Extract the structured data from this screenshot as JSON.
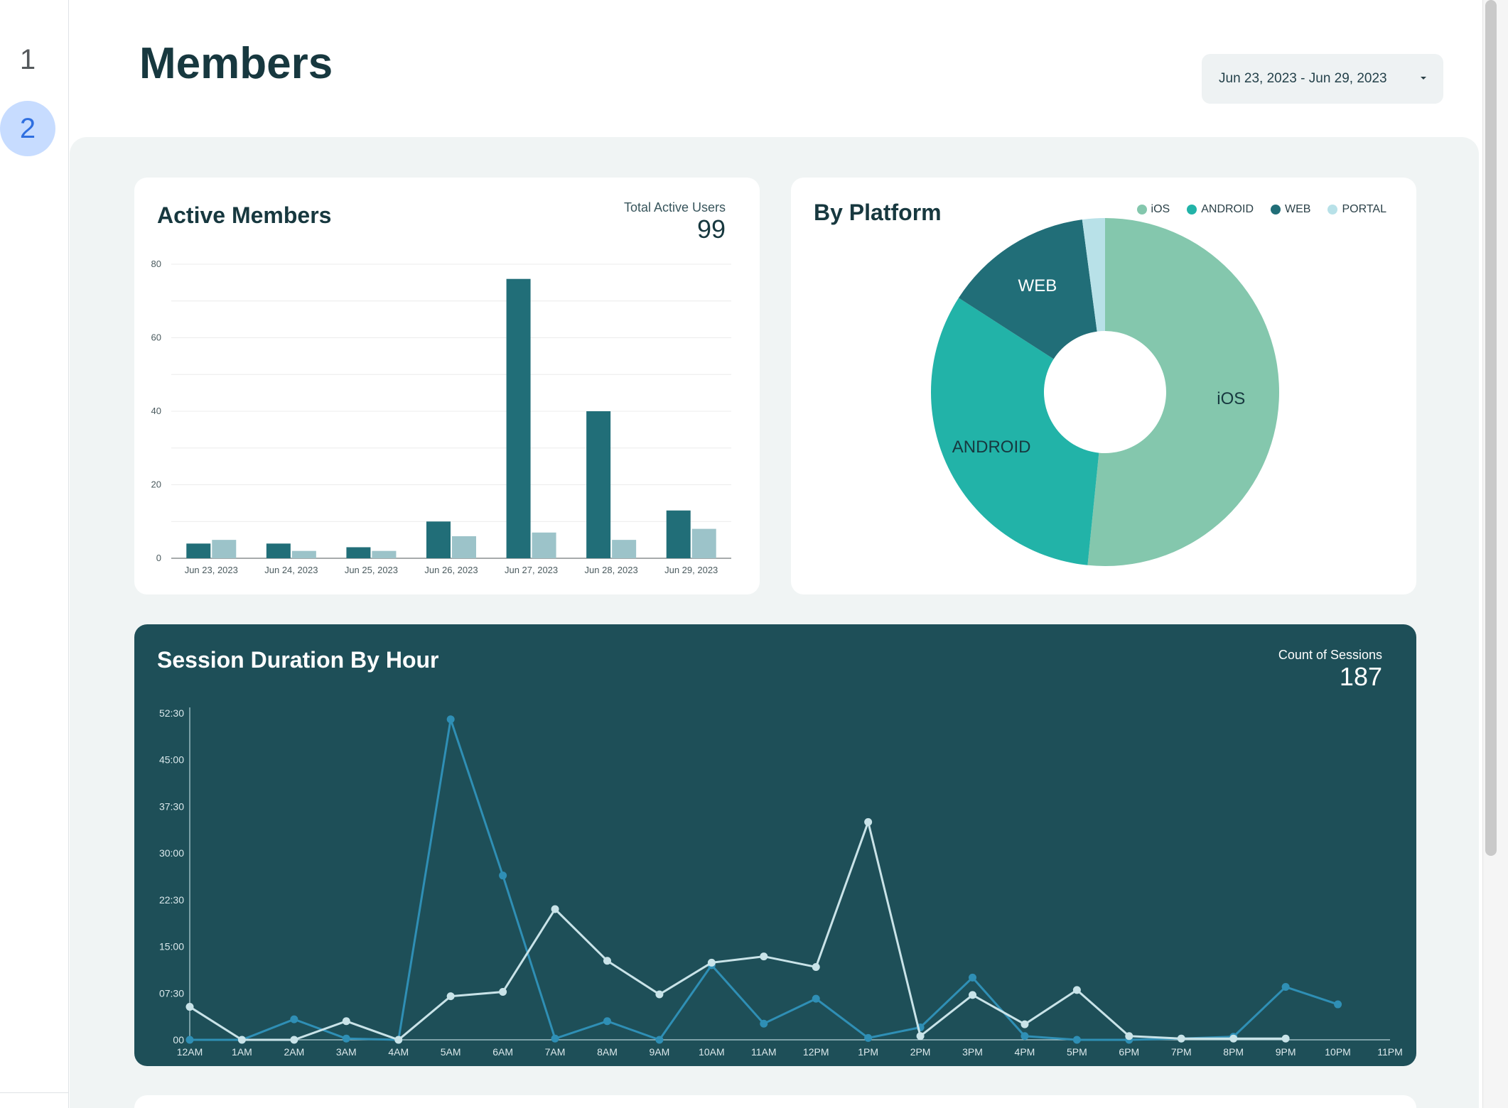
{
  "pages": [
    "1",
    "2"
  ],
  "active_page": "2",
  "header": {
    "title": "Members",
    "date_range": "Jun 23, 2023 - Jun 29, 2023"
  },
  "active_members": {
    "title": "Active Members",
    "stat_label": "Total Active Users",
    "stat_value": "99",
    "colors": [
      "#216e78",
      "#9cc3c9"
    ],
    "chart_data": {
      "type": "bar",
      "categories": [
        "Jun 23, 2023",
        "Jun 24, 2023",
        "Jun 25, 2023",
        "Jun 26, 2023",
        "Jun 27, 2023",
        "Jun 28, 2023",
        "Jun 29, 2023"
      ],
      "series": [
        {
          "values": [
            4,
            4,
            3,
            10,
            76,
            40,
            13
          ]
        },
        {
          "values": [
            5,
            2,
            2,
            6,
            7,
            5,
            8
          ]
        }
      ],
      "yticks": [
        "0",
        "20",
        "40",
        "60",
        "80"
      ],
      "ylim": [
        0,
        80
      ],
      "grid": true
    }
  },
  "by_platform": {
    "title": "By Platform",
    "legend": [
      {
        "label": "iOS",
        "color": "#84c7ad"
      },
      {
        "label": "ANDROID",
        "color": "#22b3a8"
      },
      {
        "label": "WEB",
        "color": "#216e78"
      },
      {
        "label": "PORTAL",
        "color": "#b8e1e8"
      }
    ],
    "chart_data": {
      "type": "pie",
      "donut": true,
      "slices": [
        {
          "label": "iOS",
          "value": 51.6,
          "color": "#84c7ad"
        },
        {
          "label": "ANDROID",
          "value": 32.5,
          "color": "#22b3a8"
        },
        {
          "label": "WEB",
          "value": 13.8,
          "color": "#216e78"
        },
        {
          "label": "PORTAL",
          "value": 2.1,
          "color": "#b8e1e8"
        }
      ],
      "slice_labels": [
        "iOS",
        "ANDROID",
        "WEB"
      ]
    }
  },
  "session_duration": {
    "title": "Session Duration By Hour",
    "stat_label": "Count of Sessions",
    "stat_value": "187",
    "colors": [
      "#2f8fb5",
      "#c9e3e8"
    ],
    "chart_data": {
      "type": "line",
      "x": [
        "12AM",
        "1AM",
        "2AM",
        "3AM",
        "4AM",
        "5AM",
        "6AM",
        "7AM",
        "8AM",
        "9AM",
        "10AM",
        "11AM",
        "12PM",
        "1PM",
        "2PM",
        "3PM",
        "4PM",
        "5PM",
        "6PM",
        "7PM",
        "8PM",
        "9PM",
        "10PM",
        "11PM"
      ],
      "y_unit": "minutes",
      "yticks": [
        "00",
        "07:30",
        "15:00",
        "22:30",
        "30:00",
        "37:30",
        "45:00",
        "52:30"
      ],
      "ylim": [
        0,
        52.5
      ],
      "series": [
        {
          "values": [
            0,
            0,
            3.3,
            0.2,
            0,
            51.5,
            26.4,
            0.2,
            3,
            0,
            12,
            2.6,
            6.6,
            0.3,
            2,
            10,
            0.6,
            0,
            0,
            0.2,
            0.5,
            8.5,
            5.7,
            null
          ]
        },
        {
          "values": [
            5.3,
            0,
            0,
            3,
            0,
            7,
            7.7,
            21,
            12.7,
            7.3,
            12.4,
            13.4,
            11.7,
            35,
            0.6,
            7.2,
            2.5,
            8,
            0.6,
            0.2,
            0.2,
            0.2,
            null,
            null
          ]
        }
      ]
    }
  }
}
